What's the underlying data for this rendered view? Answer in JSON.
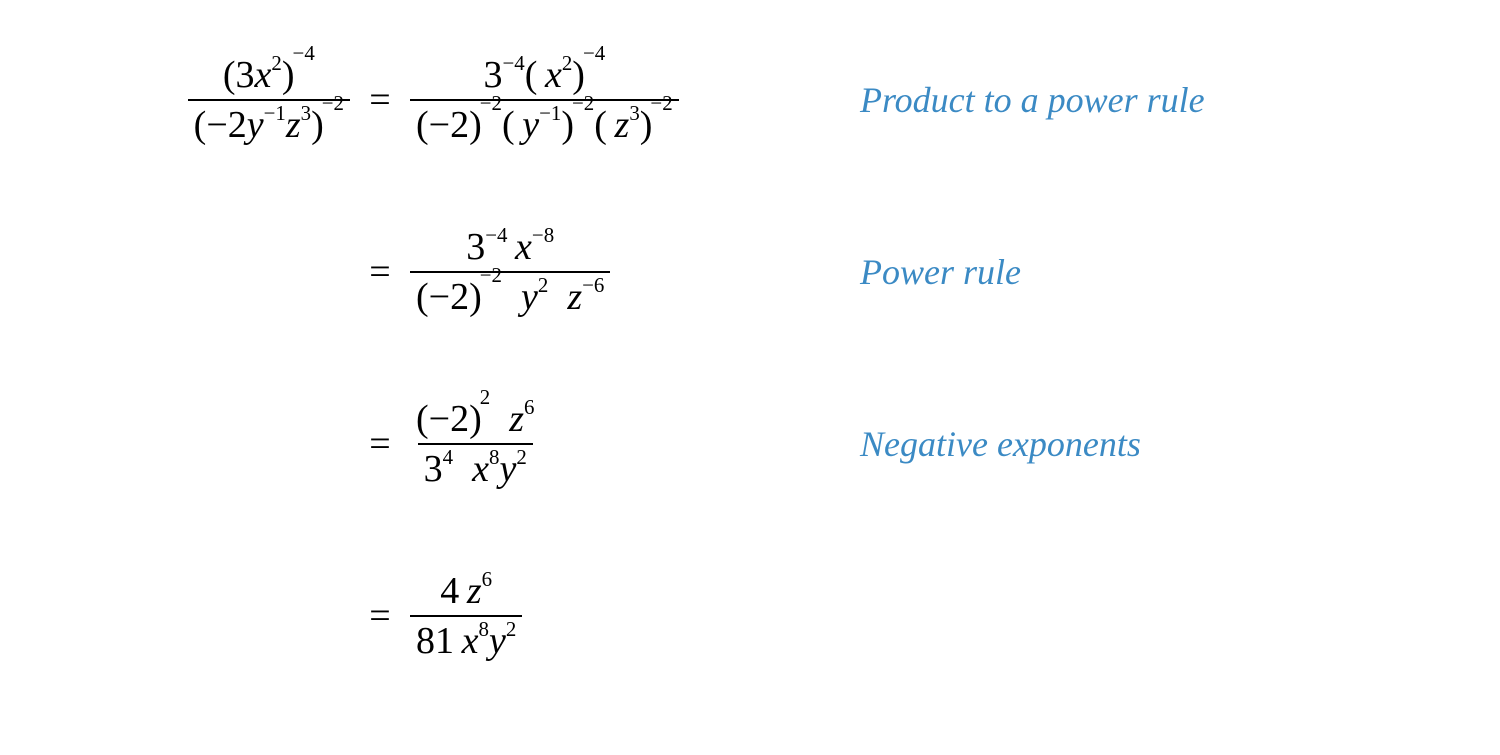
{
  "colors": {
    "text": "#000000",
    "annotation": "#3b8ac4",
    "background": "#ffffff",
    "fraction_bar": "#000000"
  },
  "typography": {
    "math_font": "Times New Roman",
    "math_fontsize_pt": 28,
    "annotation_fontsize_pt": 27,
    "annotation_style": "italic"
  },
  "equals": "=",
  "lhs": {
    "numerator": {
      "open": "(",
      "coef": "3",
      "var": "x",
      "var_exp": "2",
      "close": ")",
      "outer_exp": "−4"
    },
    "denominator": {
      "open": "(",
      "coef": "−2",
      "var1": "y",
      "var1_exp": "−1",
      "var2": "z",
      "var2_exp": "3",
      "close": ")",
      "outer_exp": "−2"
    }
  },
  "steps": [
    {
      "annotation": "Product to a power rule",
      "num": {
        "a_base": "3",
        "a_exp": "−4",
        "b_open": "(",
        "b_var": "x",
        "b_var_exp": "2",
        "b_close": ")",
        "b_outer_exp": "−4"
      },
      "den": {
        "a_open": "(",
        "a_base": "−2",
        "a_close": ")",
        "a_outer_exp": "−2",
        "b_open": "(",
        "b_var": "y",
        "b_var_exp": "−1",
        "b_close": ")",
        "b_outer_exp": "−2",
        "c_open": "(",
        "c_var": "z",
        "c_var_exp": "3",
        "c_close": ")",
        "c_outer_exp": "−2"
      }
    },
    {
      "annotation": "Power rule",
      "num": {
        "a_base": "3",
        "a_exp": "−4",
        "b_var": "x",
        "b_exp": "−8"
      },
      "den": {
        "a_open": "(",
        "a_base": "−2",
        "a_close": ")",
        "a_outer_exp": "−2",
        "b_var": "y",
        "b_exp": "2",
        "c_var": "z",
        "c_exp": "−6"
      }
    },
    {
      "annotation": "Negative exponents",
      "num": {
        "a_open": "(",
        "a_base": "−2",
        "a_close": ")",
        "a_outer_exp": "2",
        "b_var": "z",
        "b_exp": "6"
      },
      "den": {
        "a_base": "3",
        "a_exp": "4",
        "b_var": "x",
        "b_exp": "8",
        "c_var": "y",
        "c_exp": "2"
      }
    },
    {
      "annotation": "",
      "num": {
        "a_base": "4",
        "b_var": "z",
        "b_exp": "6"
      },
      "den": {
        "a_base": "81",
        "b_var": "x",
        "b_exp": "8",
        "c_var": "y",
        "c_exp": "2"
      }
    }
  ]
}
